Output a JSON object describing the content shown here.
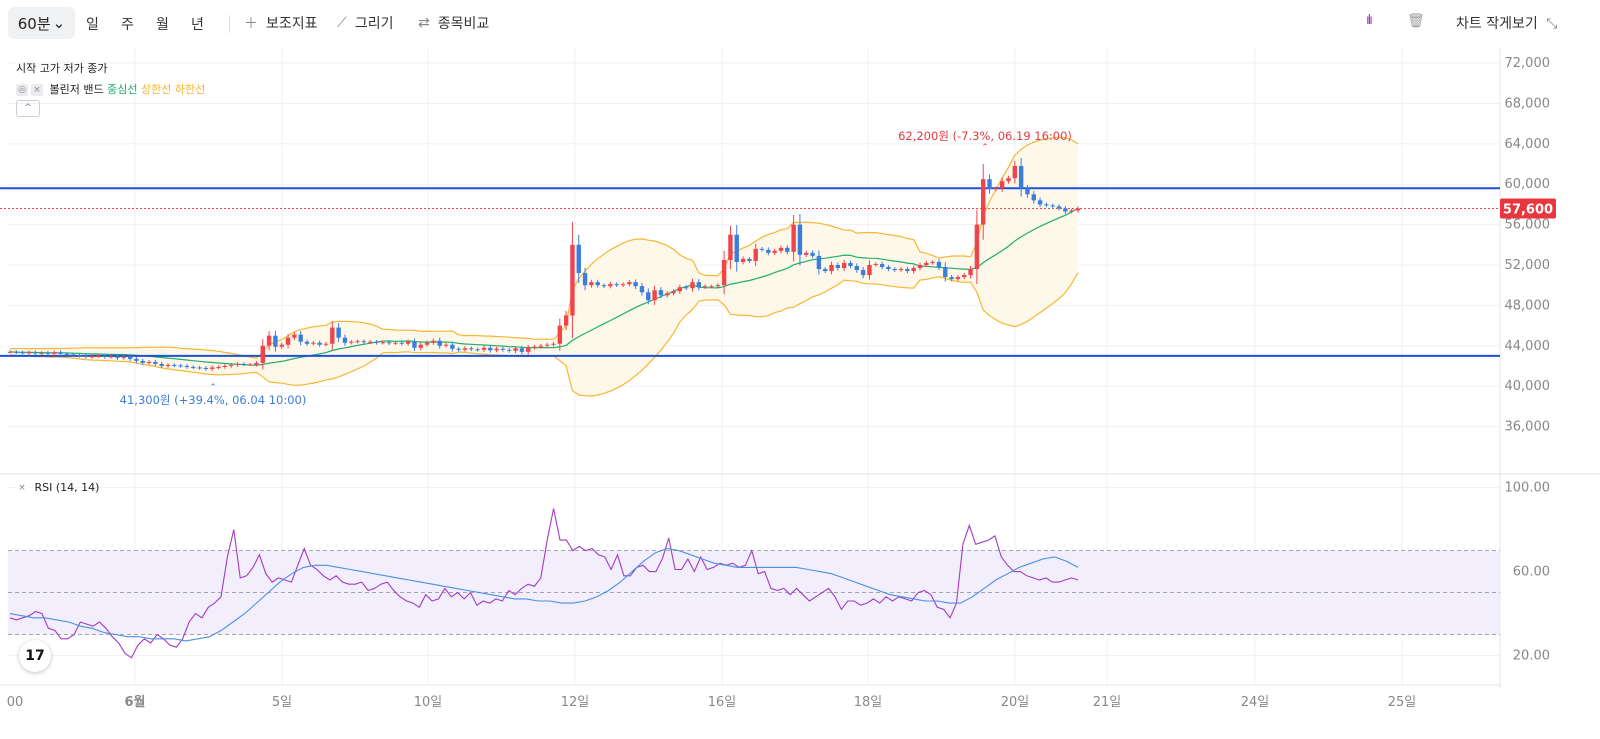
{
  "toolbar": {
    "timeframe": "60분",
    "periods": [
      "일",
      "주",
      "월",
      "년"
    ],
    "indicators_label": "보조지표",
    "draw_label": "그리기",
    "compare_label": "종목비교",
    "small_view_label": "차트 작게보기"
  },
  "legend": {
    "ohlc": "시작 고가 저가 종가",
    "bb_name": "볼린저 밴드",
    "bb_mid": "중심선",
    "bb_upper": "상한선",
    "bb_lower": "하한선",
    "rsi": "RSI (14, 14)"
  },
  "annotations": {
    "high": "62,200원 (-7.3%, 06.19 16:00)",
    "low": "41,300원 (+39.4%, 06.04 10:00)",
    "last_price": "57,600"
  },
  "colors": {
    "up": "#f0444c",
    "down": "#3b7ddd",
    "mid": "#1fae6b",
    "band": "#f7b733",
    "hline": "#1d4fd8",
    "rsi": "#a23bc4",
    "rsi_sig": "#4a90e2"
  },
  "chart_data": {
    "type": "candlestick",
    "price_axis": [
      "72,000",
      "68,000",
      "64,000",
      "60,000",
      "56,000",
      "52,000",
      "48,000",
      "44,000",
      "40,000",
      "36,000"
    ],
    "price_ylim": [
      31200,
      72600
    ],
    "horizontal_lines": [
      59600,
      43000
    ],
    "last_price": 57600,
    "rsi_axis": [
      "100.00",
      "60.00",
      "20.00"
    ],
    "rsi_ylim": [
      6,
      106
    ],
    "rsi_bands": [
      30,
      50,
      70
    ],
    "x_labels": [
      "00",
      "6월",
      "5일",
      "10일",
      "12일",
      "16일",
      "18일",
      "20일",
      "21일",
      "24일",
      "25일"
    ],
    "closes": [
      43400,
      43350,
      43300,
      43350,
      43250,
      43300,
      43200,
      43350,
      43200,
      43150,
      43050,
      43000,
      42900,
      42950,
      43000,
      42900,
      42950,
      42800,
      42900,
      42700,
      42500,
      42300,
      42400,
      42200,
      42000,
      42100,
      42050,
      42000,
      41900,
      41850,
      41800,
      41700,
      41850,
      41900,
      42000,
      42100,
      42200,
      42150,
      42150,
      42300,
      44000,
      45000,
      43900,
      44100,
      44800,
      45100,
      44400,
      44200,
      44300,
      44100,
      44200,
      45800,
      44800,
      44300,
      44400,
      44450,
      44350,
      44400,
      44300,
      44350,
      44250,
      44300,
      44200,
      44400,
      43800,
      44100,
      44300,
      44500,
      44000,
      44100,
      43700,
      43600,
      43750,
      43650,
      43600,
      43800,
      43550,
      43700,
      43600,
      43500,
      43750,
      43400,
      43800,
      43900,
      44000,
      44100,
      44200,
      46000,
      47000,
      54000,
      51200,
      50000,
      50300,
      50000,
      49900,
      50100,
      50000,
      50100,
      50300,
      49900,
      49300,
      48500,
      49500,
      49000,
      49200,
      49400,
      49800,
      49700,
      50300,
      49800,
      49900,
      49900,
      50000,
      52500,
      55000,
      52300,
      52600,
      52400,
      53600,
      53500,
      53200,
      53400,
      53700,
      53300,
      56000,
      53000,
      53200,
      52900,
      51600,
      51400,
      52000,
      51700,
      52200,
      51900,
      51500,
      51000,
      52000,
      52100,
      51800,
      51600,
      51500,
      51600,
      51400,
      51700,
      52000,
      52200,
      52300,
      51800,
      50800,
      50600,
      50800,
      51000,
      51600,
      56000,
      60500,
      59500,
      59600,
      60300,
      60600,
      61800,
      59600,
      59000,
      58400,
      58000,
      57900,
      57800,
      57600,
      57300,
      57400,
      57600
    ],
    "rsi": [
      38,
      37,
      38,
      39,
      41,
      40,
      33,
      32,
      28,
      28,
      30,
      36,
      35,
      34,
      36,
      33,
      29,
      26,
      21,
      19,
      25,
      28,
      26,
      30,
      28,
      25,
      24,
      28,
      36,
      40,
      38,
      43,
      45,
      48,
      67,
      80,
      57,
      58,
      62,
      68,
      59,
      55,
      57,
      56,
      55,
      63,
      71,
      63,
      61,
      58,
      56,
      58,
      55,
      54,
      54,
      55,
      51,
      52,
      54,
      55,
      51,
      48,
      46,
      45,
      43,
      49,
      46,
      47,
      52,
      48,
      50,
      47,
      50,
      44,
      46,
      45,
      47,
      46,
      51,
      49,
      52,
      54,
      53,
      57,
      75,
      90,
      75,
      75,
      70,
      72,
      70,
      71,
      68,
      67,
      61,
      68,
      58,
      58,
      62,
      63,
      60,
      60,
      66,
      76,
      61,
      61,
      66,
      60,
      67,
      61,
      62,
      64,
      63,
      64,
      62,
      63,
      70,
      59,
      60,
      52,
      51,
      52,
      49,
      52,
      49,
      46,
      48,
      50,
      52,
      48,
      42,
      46,
      46,
      44,
      45,
      47,
      45,
      48,
      46,
      48,
      47,
      46,
      50,
      51,
      49,
      43,
      42,
      38,
      45,
      73,
      82,
      73,
      74,
      75,
      77,
      67,
      63,
      60,
      60,
      58,
      57,
      56,
      57,
      55,
      55,
      56,
      57,
      56
    ],
    "rsi_signal": [
      40,
      39,
      38,
      38,
      37,
      36,
      34,
      33,
      31,
      30,
      29,
      29,
      28,
      28,
      28,
      27,
      28,
      29,
      32,
      36,
      40,
      45,
      50,
      55,
      59,
      62,
      63,
      63,
      62,
      61,
      60,
      59,
      58,
      57,
      56,
      55,
      54,
      53,
      52,
      51,
      50,
      49,
      48,
      47,
      47,
      46,
      46,
      45,
      45,
      46,
      48,
      51,
      55,
      60,
      65,
      69,
      71,
      70,
      68,
      66,
      64,
      63,
      62,
      62,
      62,
      62,
      62,
      62,
      61,
      60,
      59,
      57,
      55,
      53,
      51,
      49,
      48,
      47,
      46,
      46,
      45,
      45,
      48,
      52,
      56,
      59,
      62,
      64,
      66,
      67,
      65,
      62
    ]
  }
}
